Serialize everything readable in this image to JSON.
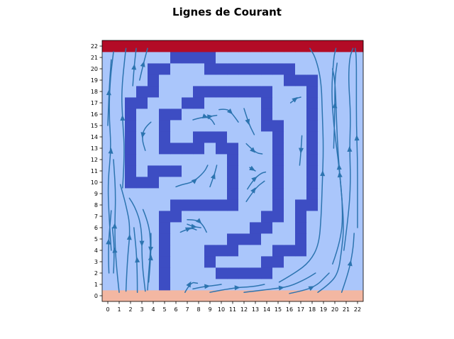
{
  "chart_data": {
    "type": "heatmap",
    "title": "Lignes de Courant",
    "xlabel": "",
    "ylabel": "",
    "xlim": [
      -0.5,
      22.5
    ],
    "ylim": [
      -0.5,
      22.5
    ],
    "x_ticks": [
      "0",
      "1",
      "2",
      "3",
      "4",
      "5",
      "6",
      "7",
      "8",
      "9",
      "10",
      "11",
      "12",
      "13",
      "14",
      "15",
      "16",
      "17",
      "18",
      "19",
      "20",
      "21",
      "22"
    ],
    "y_ticks": [
      "0",
      "1",
      "2",
      "3",
      "4",
      "5",
      "6",
      "7",
      "8",
      "9",
      "10",
      "11",
      "12",
      "13",
      "14",
      "15",
      "16",
      "17",
      "18",
      "19",
      "20",
      "21",
      "22"
    ],
    "grid": false,
    "legend": "none",
    "colors": {
      "open": "#aac6fb",
      "wall": "#3d4dc3",
      "top_boundary": "#b30b26",
      "bottom_boundary": "#f3b7a2",
      "streamline": "#2c74b0"
    },
    "cells": {
      "top_boundary_rows": [
        22
      ],
      "bottom_boundary_rows": [
        0
      ],
      "wall": [
        [
          6,
          21
        ],
        [
          7,
          21
        ],
        [
          8,
          21
        ],
        [
          9,
          21
        ],
        [
          4,
          20
        ],
        [
          5,
          20
        ],
        [
          9,
          20
        ],
        [
          10,
          20
        ],
        [
          11,
          20
        ],
        [
          12,
          20
        ],
        [
          13,
          20
        ],
        [
          14,
          20
        ],
        [
          15,
          20
        ],
        [
          16,
          20
        ],
        [
          4,
          19
        ],
        [
          16,
          19
        ],
        [
          17,
          19
        ],
        [
          18,
          19
        ],
        [
          3,
          18
        ],
        [
          4,
          18
        ],
        [
          8,
          18
        ],
        [
          9,
          18
        ],
        [
          10,
          18
        ],
        [
          11,
          18
        ],
        [
          12,
          18
        ],
        [
          13,
          18
        ],
        [
          14,
          18
        ],
        [
          18,
          18
        ],
        [
          2,
          17
        ],
        [
          3,
          17
        ],
        [
          7,
          17
        ],
        [
          8,
          17
        ],
        [
          14,
          17
        ],
        [
          18,
          17
        ],
        [
          2,
          16
        ],
        [
          5,
          16
        ],
        [
          6,
          16
        ],
        [
          14,
          16
        ],
        [
          18,
          16
        ],
        [
          2,
          15
        ],
        [
          5,
          15
        ],
        [
          14,
          15
        ],
        [
          15,
          15
        ],
        [
          18,
          15
        ],
        [
          2,
          14
        ],
        [
          5,
          14
        ],
        [
          8,
          14
        ],
        [
          9,
          14
        ],
        [
          10,
          14
        ],
        [
          15,
          14
        ],
        [
          18,
          14
        ],
        [
          2,
          13
        ],
        [
          5,
          13
        ],
        [
          6,
          13
        ],
        [
          7,
          13
        ],
        [
          8,
          13
        ],
        [
          10,
          13
        ],
        [
          11,
          13
        ],
        [
          15,
          13
        ],
        [
          18,
          13
        ],
        [
          2,
          12
        ],
        [
          11,
          12
        ],
        [
          15,
          12
        ],
        [
          18,
          12
        ],
        [
          2,
          11
        ],
        [
          4,
          11
        ],
        [
          5,
          11
        ],
        [
          6,
          11
        ],
        [
          11,
          11
        ],
        [
          15,
          11
        ],
        [
          18,
          11
        ],
        [
          2,
          10
        ],
        [
          3,
          10
        ],
        [
          4,
          10
        ],
        [
          11,
          10
        ],
        [
          15,
          10
        ],
        [
          18,
          10
        ],
        [
          11,
          9
        ],
        [
          15,
          9
        ],
        [
          18,
          9
        ],
        [
          6,
          8
        ],
        [
          7,
          8
        ],
        [
          8,
          8
        ],
        [
          9,
          8
        ],
        [
          10,
          8
        ],
        [
          11,
          8
        ],
        [
          15,
          8
        ],
        [
          17,
          8
        ],
        [
          18,
          8
        ],
        [
          5,
          7
        ],
        [
          6,
          7
        ],
        [
          14,
          7
        ],
        [
          15,
          7
        ],
        [
          17,
          7
        ],
        [
          5,
          6
        ],
        [
          13,
          6
        ],
        [
          14,
          6
        ],
        [
          17,
          6
        ],
        [
          5,
          5
        ],
        [
          11,
          5
        ],
        [
          12,
          5
        ],
        [
          13,
          5
        ],
        [
          17,
          5
        ],
        [
          5,
          4
        ],
        [
          9,
          4
        ],
        [
          10,
          4
        ],
        [
          11,
          4
        ],
        [
          15,
          4
        ],
        [
          16,
          4
        ],
        [
          17,
          4
        ],
        [
          5,
          3
        ],
        [
          9,
          3
        ],
        [
          14,
          3
        ],
        [
          15,
          3
        ],
        [
          5,
          2
        ],
        [
          10,
          2
        ],
        [
          11,
          2
        ],
        [
          12,
          2
        ],
        [
          13,
          2
        ],
        [
          14,
          2
        ],
        [
          5,
          1
        ]
      ]
    },
    "streamlines": [
      [
        [
          0.1,
          2.0
        ],
        [
          0.0,
          4.0
        ],
        [
          0.3,
          7.5
        ]
      ],
      [
        [
          0.5,
          2.0
        ],
        [
          0.6,
          4.0
        ],
        [
          0.4,
          6.0
        ]
      ],
      [
        [
          0.3,
          4.0
        ],
        [
          0.1,
          7.0
        ],
        [
          0.0,
          10.0
        ],
        [
          0.3,
          13.0
        ],
        [
          0.1,
          16.0
        ],
        [
          0.2,
          19.0
        ],
        [
          0.5,
          21.5
        ]
      ],
      [
        [
          1.0,
          0.3
        ],
        [
          0.7,
          3.0
        ],
        [
          0.6,
          6.0
        ],
        [
          0.7,
          9.0
        ],
        [
          0.5,
          12.0
        ]
      ],
      [
        [
          0.0,
          15.0
        ],
        [
          0.1,
          18.0
        ],
        [
          0.3,
          20.8
        ]
      ],
      [
        [
          1.3,
          9.5
        ],
        [
          1.5,
          12.5
        ],
        [
          1.3,
          15.5
        ],
        [
          1.2,
          18.0
        ],
        [
          1.5,
          21.0
        ],
        [
          1.6,
          21.8
        ]
      ],
      [
        [
          1.6,
          0.4
        ],
        [
          1.7,
          3.0
        ],
        [
          2.0,
          6.0
        ],
        [
          1.6,
          8.0
        ],
        [
          1.1,
          9.8
        ]
      ],
      [
        [
          2.2,
          18.5
        ],
        [
          2.3,
          20.0
        ],
        [
          2.5,
          21.8
        ]
      ],
      [
        [
          2.8,
          19.0
        ],
        [
          3.1,
          20.3
        ],
        [
          3.5,
          21.8
        ]
      ],
      [
        [
          2.6,
          0.3
        ],
        [
          2.6,
          3.0
        ],
        [
          2.3,
          6.0
        ]
      ],
      [
        [
          1.9,
          8.6
        ],
        [
          2.4,
          7.9
        ],
        [
          3.0,
          6.0
        ],
        [
          3.0,
          3.0
        ],
        [
          3.3,
          0.4
        ]
      ],
      [
        [
          3.1,
          7.6
        ],
        [
          3.6,
          6.4
        ],
        [
          3.8,
          4.5
        ],
        [
          3.6,
          2.0
        ],
        [
          3.5,
          0.5
        ]
      ],
      [
        [
          3.6,
          1.2
        ],
        [
          3.8,
          3.5
        ],
        [
          3.8,
          5.5
        ]
      ],
      [
        [
          3.8,
          15.3
        ],
        [
          3.2,
          14.8
        ],
        [
          3.0,
          13.8
        ],
        [
          3.3,
          12.8
        ]
      ],
      [
        [
          6.8,
          0.3
        ],
        [
          7.3,
          1.2
        ],
        [
          7.9,
          1.1
        ]
      ],
      [
        [
          7.5,
          0.6
        ],
        [
          8.4,
          0.8
        ],
        [
          9.4,
          0.9
        ],
        [
          10.0,
          1.0
        ]
      ],
      [
        [
          9.0,
          0.3
        ],
        [
          11.0,
          0.7
        ],
        [
          12.8,
          0.8
        ],
        [
          13.8,
          1.0
        ]
      ],
      [
        [
          12.0,
          0.3
        ],
        [
          14.5,
          0.6
        ],
        [
          16.0,
          0.8
        ],
        [
          17.5,
          1.5
        ],
        [
          18.3,
          2.0
        ]
      ],
      [
        [
          16.0,
          0.2
        ],
        [
          17.5,
          0.5
        ],
        [
          18.5,
          1.0
        ],
        [
          19.0,
          1.5
        ],
        [
          19.5,
          2.0
        ]
      ],
      [
        [
          15.1,
          1.2
        ],
        [
          16.5,
          2.0
        ],
        [
          17.8,
          3.0
        ],
        [
          18.6,
          4.5
        ],
        [
          18.8,
          7.0
        ],
        [
          18.9,
          10.0
        ],
        [
          19.0,
          13.0
        ],
        [
          18.9,
          16.0
        ],
        [
          18.8,
          19.0
        ],
        [
          18.3,
          21.0
        ],
        [
          17.8,
          21.8
        ]
      ],
      [
        [
          18.5,
          0.3
        ],
        [
          19.5,
          1.0
        ],
        [
          20.3,
          2.0
        ],
        [
          20.6,
          4.0
        ],
        [
          20.8,
          6.0
        ],
        [
          20.6,
          9.0
        ],
        [
          20.3,
          12.0
        ],
        [
          19.9,
          15.0
        ],
        [
          19.7,
          18.0
        ],
        [
          19.9,
          21.0
        ],
        [
          20.1,
          21.8
        ]
      ],
      [
        [
          20.6,
          0.3
        ],
        [
          21.2,
          2.0
        ],
        [
          21.6,
          4.0
        ],
        [
          21.7,
          5.5
        ]
      ],
      [
        [
          20.8,
          4.0
        ],
        [
          21.2,
          7.0
        ],
        [
          21.4,
          10.0
        ],
        [
          21.3,
          13.0
        ],
        [
          21.4,
          16.0
        ],
        [
          21.2,
          19.0
        ],
        [
          21.3,
          21.0
        ],
        [
          21.6,
          21.8
        ]
      ],
      [
        [
          22.0,
          6.0
        ],
        [
          22.0,
          9.0
        ],
        [
          22.0,
          12.0
        ],
        [
          21.9,
          15.0
        ],
        [
          21.9,
          18.0
        ],
        [
          21.9,
          21.0
        ],
        [
          21.8,
          21.8
        ]
      ],
      [
        [
          19.8,
          2.8
        ],
        [
          20.6,
          5.0
        ],
        [
          20.7,
          8.0
        ],
        [
          20.4,
          11.0
        ],
        [
          20.2,
          14.0
        ],
        [
          20.1,
          17.0
        ],
        [
          20.0,
          19.0
        ],
        [
          19.8,
          20.0
        ]
      ],
      [
        [
          19.9,
          13.0
        ],
        [
          20.0,
          16.0
        ],
        [
          20.0,
          19.0
        ],
        [
          20.2,
          20.5
        ]
      ],
      [
        [
          6.4,
          5.6
        ],
        [
          7.3,
          6.0
        ],
        [
          7.8,
          5.8
        ]
      ],
      [
        [
          7.0,
          6.7
        ],
        [
          7.9,
          6.7
        ],
        [
          8.4,
          6.2
        ],
        [
          8.7,
          5.6
        ]
      ],
      [
        [
          7.0,
          6.3
        ],
        [
          7.5,
          6.1
        ],
        [
          8.2,
          6.0
        ]
      ],
      [
        [
          6.0,
          9.6
        ],
        [
          6.5,
          9.8
        ],
        [
          7.5,
          10.0
        ],
        [
          8.5,
          10.9
        ],
        [
          8.8,
          11.5
        ]
      ],
      [
        [
          9.0,
          9.6
        ],
        [
          9.4,
          10.7
        ],
        [
          9.6,
          11.5
        ]
      ],
      [
        [
          7.5,
          15.5
        ],
        [
          8.5,
          15.8
        ],
        [
          9.1,
          15.6
        ],
        [
          9.4,
          15.1
        ]
      ],
      [
        [
          8.4,
          15.7
        ],
        [
          9.0,
          15.8
        ],
        [
          9.6,
          15.9
        ]
      ],
      [
        [
          9.8,
          16.4
        ],
        [
          10.5,
          16.5
        ],
        [
          11.0,
          16.0
        ],
        [
          11.5,
          15.3
        ]
      ],
      [
        [
          12.0,
          16.5
        ],
        [
          12.4,
          15.2
        ],
        [
          12.9,
          14.2
        ]
      ],
      [
        [
          12.2,
          13.4
        ],
        [
          13.0,
          12.6
        ],
        [
          13.6,
          12.5
        ]
      ],
      [
        [
          12.5,
          11.3
        ],
        [
          13.0,
          11.0
        ]
      ],
      [
        [
          12.3,
          9.4
        ],
        [
          12.8,
          10.2
        ],
        [
          13.5,
          10.8
        ],
        [
          13.9,
          10.9
        ]
      ],
      [
        [
          12.2,
          8.3
        ],
        [
          13.0,
          9.5
        ],
        [
          13.8,
          10.1
        ]
      ],
      [
        [
          16.1,
          17.0
        ],
        [
          16.6,
          17.4
        ],
        [
          17.0,
          17.5
        ]
      ],
      [
        [
          17.1,
          14.1
        ],
        [
          17.0,
          12.5
        ],
        [
          16.9,
          11.5
        ]
      ]
    ]
  }
}
